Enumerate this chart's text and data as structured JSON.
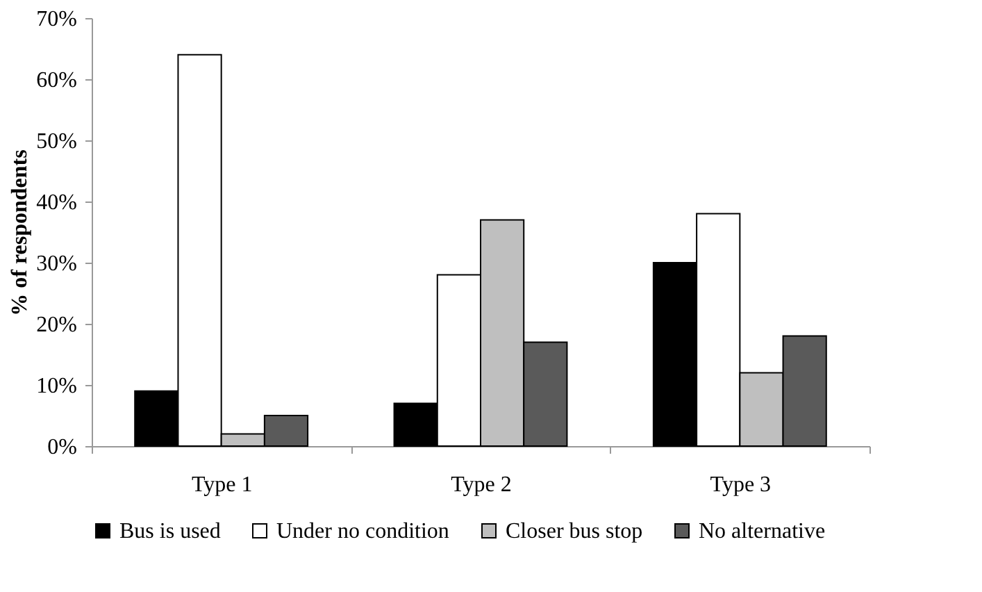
{
  "chart_data": {
    "type": "bar",
    "ylabel": "% of respondents",
    "categories": [
      "Type 1",
      "Type 2",
      "Type 3"
    ],
    "series": [
      {
        "name": "Bus is used",
        "color": "#000000",
        "values": [
          9,
          7,
          30
        ]
      },
      {
        "name": "Under no condition",
        "color": "#ffffff",
        "values": [
          64,
          28,
          38
        ]
      },
      {
        "name": "Closer bus stop",
        "color": "#bfbfbf",
        "values": [
          2,
          37,
          12
        ]
      },
      {
        "name": "No alternative",
        "color": "#5a5a5a",
        "values": [
          5,
          17,
          18
        ]
      }
    ],
    "ylim": [
      0,
      70
    ],
    "yticks": [
      {
        "value": 0,
        "label": "0%"
      },
      {
        "value": 10,
        "label": "10%"
      },
      {
        "value": 20,
        "label": "20%"
      },
      {
        "value": 30,
        "label": "30%"
      },
      {
        "value": 40,
        "label": "40%"
      },
      {
        "value": 50,
        "label": "50%"
      },
      {
        "value": 60,
        "label": "60%"
      },
      {
        "value": 70,
        "label": "70%"
      }
    ],
    "grid": false,
    "legend": "bottom"
  }
}
